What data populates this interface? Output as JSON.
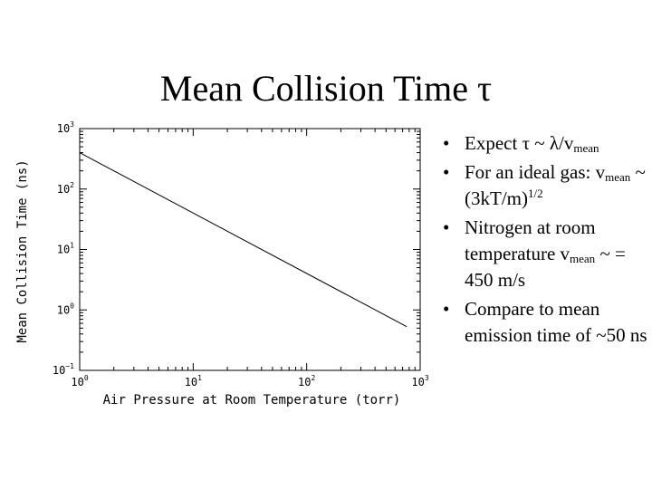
{
  "slide": {
    "title": "Mean Collision Time",
    "title_symbol": "τ"
  },
  "chart_data": {
    "type": "line",
    "xscale": "log",
    "yscale": "log",
    "xlim": [
      1,
      1000
    ],
    "ylim": [
      0.1,
      1000
    ],
    "xlabel": "Air Pressure at Room Temperature (torr)",
    "ylabel": "Mean Collision Time (ns)",
    "x_ticks": [
      {
        "value": 1,
        "base": "10",
        "exp": "0"
      },
      {
        "value": 10,
        "base": "10",
        "exp": "1"
      },
      {
        "value": 100,
        "base": "10",
        "exp": "2"
      },
      {
        "value": 1000,
        "base": "10",
        "exp": "3"
      }
    ],
    "y_ticks": [
      {
        "value": 0.1,
        "base": "10",
        "exp": "−1"
      },
      {
        "value": 1,
        "base": "10",
        "exp": "0"
      },
      {
        "value": 10,
        "base": "10",
        "exp": "1"
      },
      {
        "value": 100,
        "base": "10",
        "exp": "2"
      },
      {
        "value": 1000,
        "base": "10",
        "exp": "3"
      }
    ],
    "series": [
      {
        "name": "Mean Collision Time",
        "x": [
          1,
          760
        ],
        "y": [
          400,
          0.53
        ]
      }
    ]
  },
  "bullets": [
    {
      "parts": [
        {
          "t": "Expect "
        },
        {
          "t": "τ"
        },
        {
          "t": " ~ λ/v"
        },
        {
          "sub": "mean"
        }
      ]
    },
    {
      "parts": [
        {
          "t": "For an ideal gas: v"
        },
        {
          "sub": "mean"
        },
        {
          "t": " ~ (3kT/m)"
        },
        {
          "sup": "1/2"
        }
      ]
    },
    {
      "parts": [
        {
          "t": "Nitrogen at room temperature v"
        },
        {
          "sub": "mean"
        },
        {
          "t": " ~ = 450 m/s"
        }
      ]
    },
    {
      "parts": [
        {
          "t": "Compare to mean emission time of ~50 ns"
        }
      ]
    }
  ],
  "bullet_symbol": "•"
}
